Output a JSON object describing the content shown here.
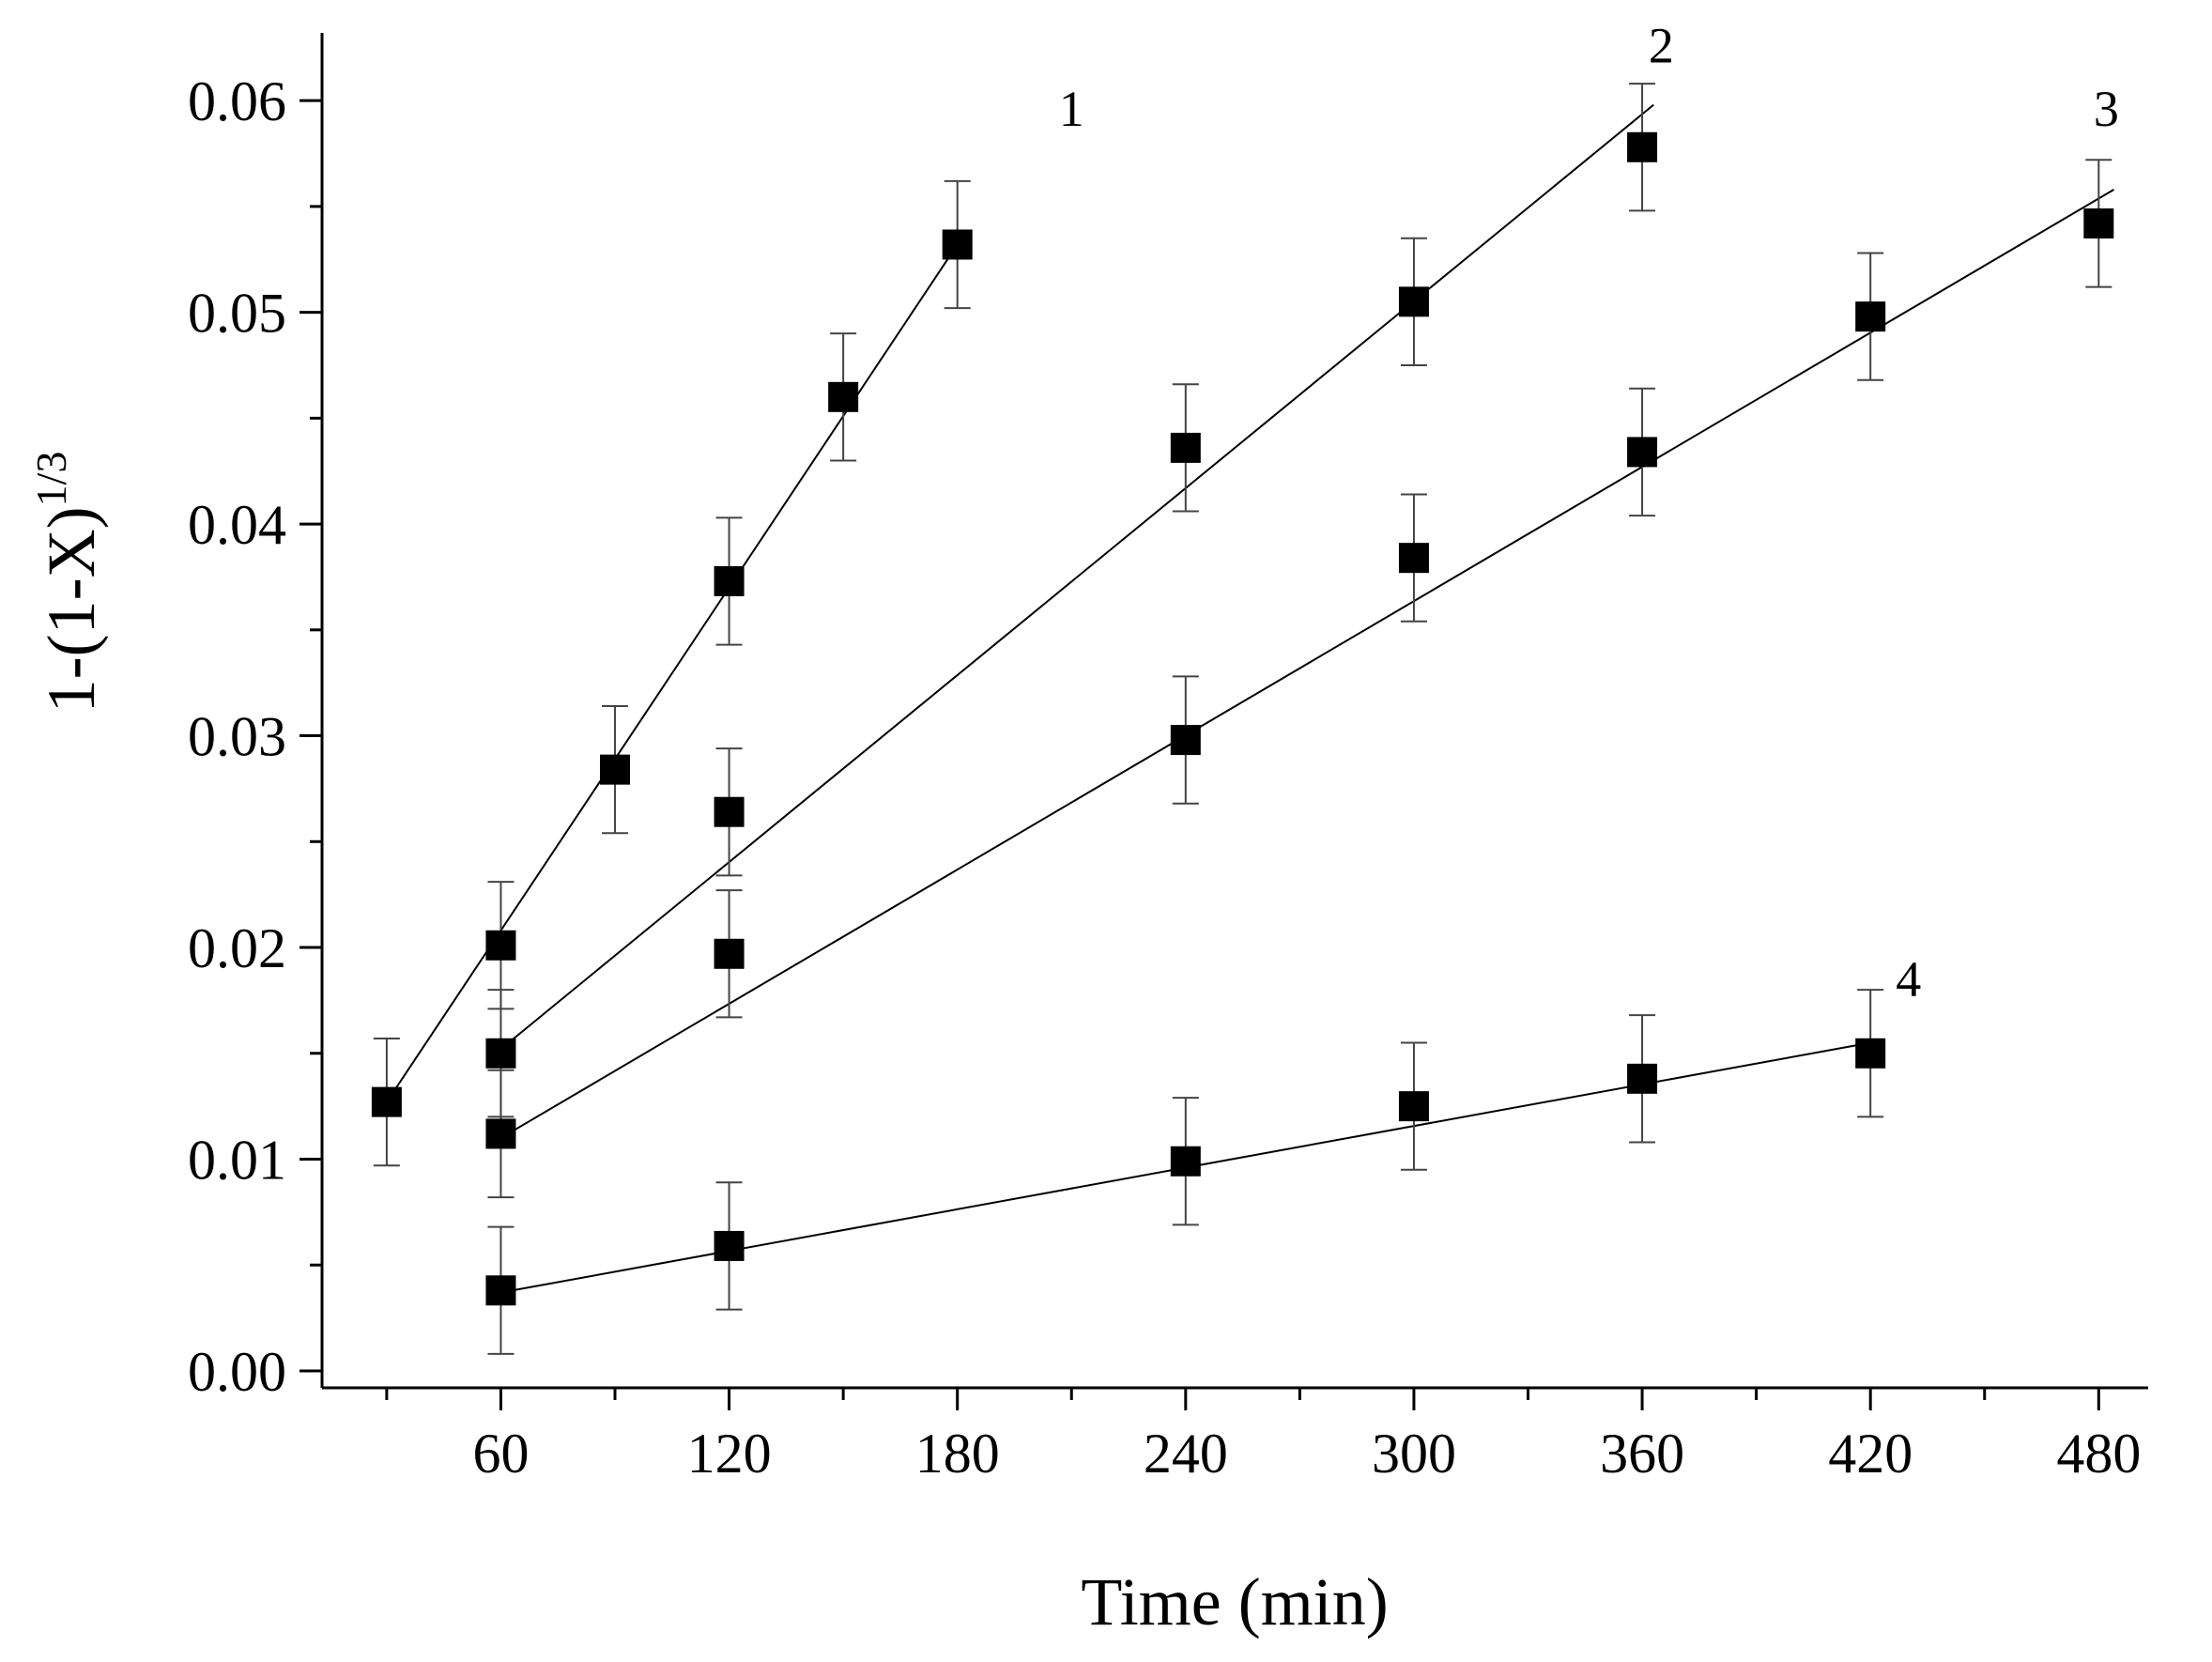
{
  "chart_data": {
    "type": "scatter",
    "title": "",
    "xlabel": "Time (min)",
    "ylabel": {
      "base": "1-(1-X)",
      "exponent": "1/3"
    },
    "xlim": [
      13,
      493
    ],
    "ylim": [
      -0.0008,
      0.0632
    ],
    "x_ticks": [
      60,
      120,
      180,
      240,
      300,
      360,
      420,
      480
    ],
    "x_tick_labels": [
      "60",
      "120",
      "180",
      "240",
      "300",
      "360",
      "420",
      "480"
    ],
    "y_ticks": [
      0.0,
      0.01,
      0.02,
      0.03,
      0.04,
      0.05,
      0.06
    ],
    "y_tick_labels": [
      "0.00",
      "0.01",
      "0.02",
      "0.03",
      "0.04",
      "0.05",
      "0.06"
    ],
    "grid": false,
    "legend": "none",
    "error_bar": 0.003,
    "series": [
      {
        "name": "1",
        "label_at": [
          210,
          0.0588
        ],
        "x": [
          30,
          60,
          90,
          120,
          150,
          180
        ],
        "y": [
          0.0127,
          0.0201,
          0.0284,
          0.0373,
          0.046,
          0.0532
        ],
        "fit": {
          "x": [
            30,
            180
          ],
          "y": [
            0.0127,
            0.0532
          ]
        }
      },
      {
        "name": "2",
        "label_at": [
          365,
          0.0618
        ],
        "x": [
          60,
          120,
          240,
          300,
          360
        ],
        "y": [
          0.015,
          0.0264,
          0.0436,
          0.0505,
          0.0578
        ],
        "fit": {
          "x": [
            60,
            363
          ],
          "y": [
            0.0152,
            0.0598
          ]
        }
      },
      {
        "name": "3",
        "label_at": [
          482,
          0.0588
        ],
        "x": [
          60,
          120,
          240,
          300,
          360,
          420,
          480
        ],
        "y": [
          0.0112,
          0.0197,
          0.0298,
          0.0384,
          0.0434,
          0.0498,
          0.0542
        ],
        "fit": {
          "x": [
            60,
            484
          ],
          "y": [
            0.011,
            0.0558
          ]
        }
      },
      {
        "name": "4",
        "label_at": [
          430,
          0.0177
        ],
        "x": [
          60,
          120,
          240,
          300,
          360,
          420
        ],
        "y": [
          0.0038,
          0.0059,
          0.0099,
          0.0125,
          0.0138,
          0.015
        ],
        "fit": {
          "x": [
            60,
            420
          ],
          "y": [
            0.0037,
            0.0155
          ]
        }
      }
    ]
  }
}
